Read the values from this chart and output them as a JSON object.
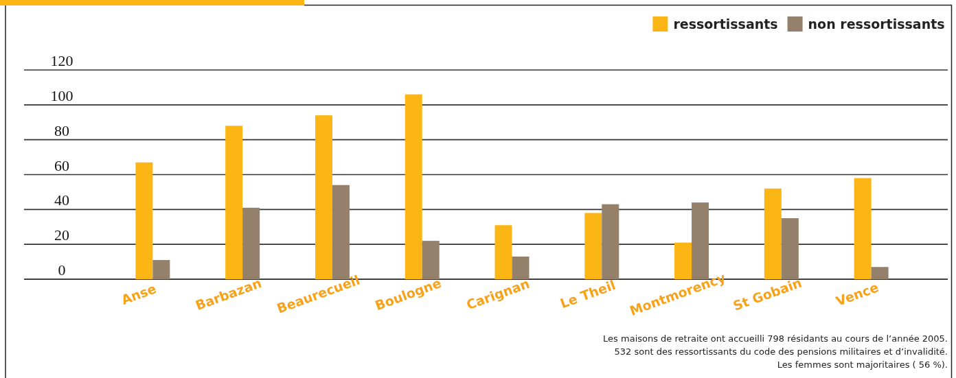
{
  "chart_data": {
    "type": "bar",
    "categories": [
      "Anse",
      "Barbazan",
      "Beaurecueil",
      "Boulogne",
      "Carignan",
      "Le Theil",
      "Montmorency",
      "St Gobain",
      "Vence"
    ],
    "series": [
      {
        "name": "ressortissants",
        "color": "#fbb615",
        "values": [
          67,
          88,
          94,
          106,
          31,
          38,
          21,
          52,
          58
        ]
      },
      {
        "name": "non ressortissants",
        "color": "#94806b",
        "values": [
          11,
          41,
          54,
          22,
          13,
          43,
          44,
          35,
          7
        ]
      }
    ],
    "ylim": [
      0,
      120
    ],
    "yticks": [
      0,
      20,
      40,
      60,
      80,
      100,
      120
    ],
    "grid": "y",
    "legend": "top right",
    "annotations": [
      "Les maisons de retraite ont accueilli 798 résidants au cours de l’année 2005.",
      "532 sont des ressortissants du code des pensions militaires et d’invalidité.",
      "Les femmes  sont majoritaires ( 56 %)."
    ]
  }
}
